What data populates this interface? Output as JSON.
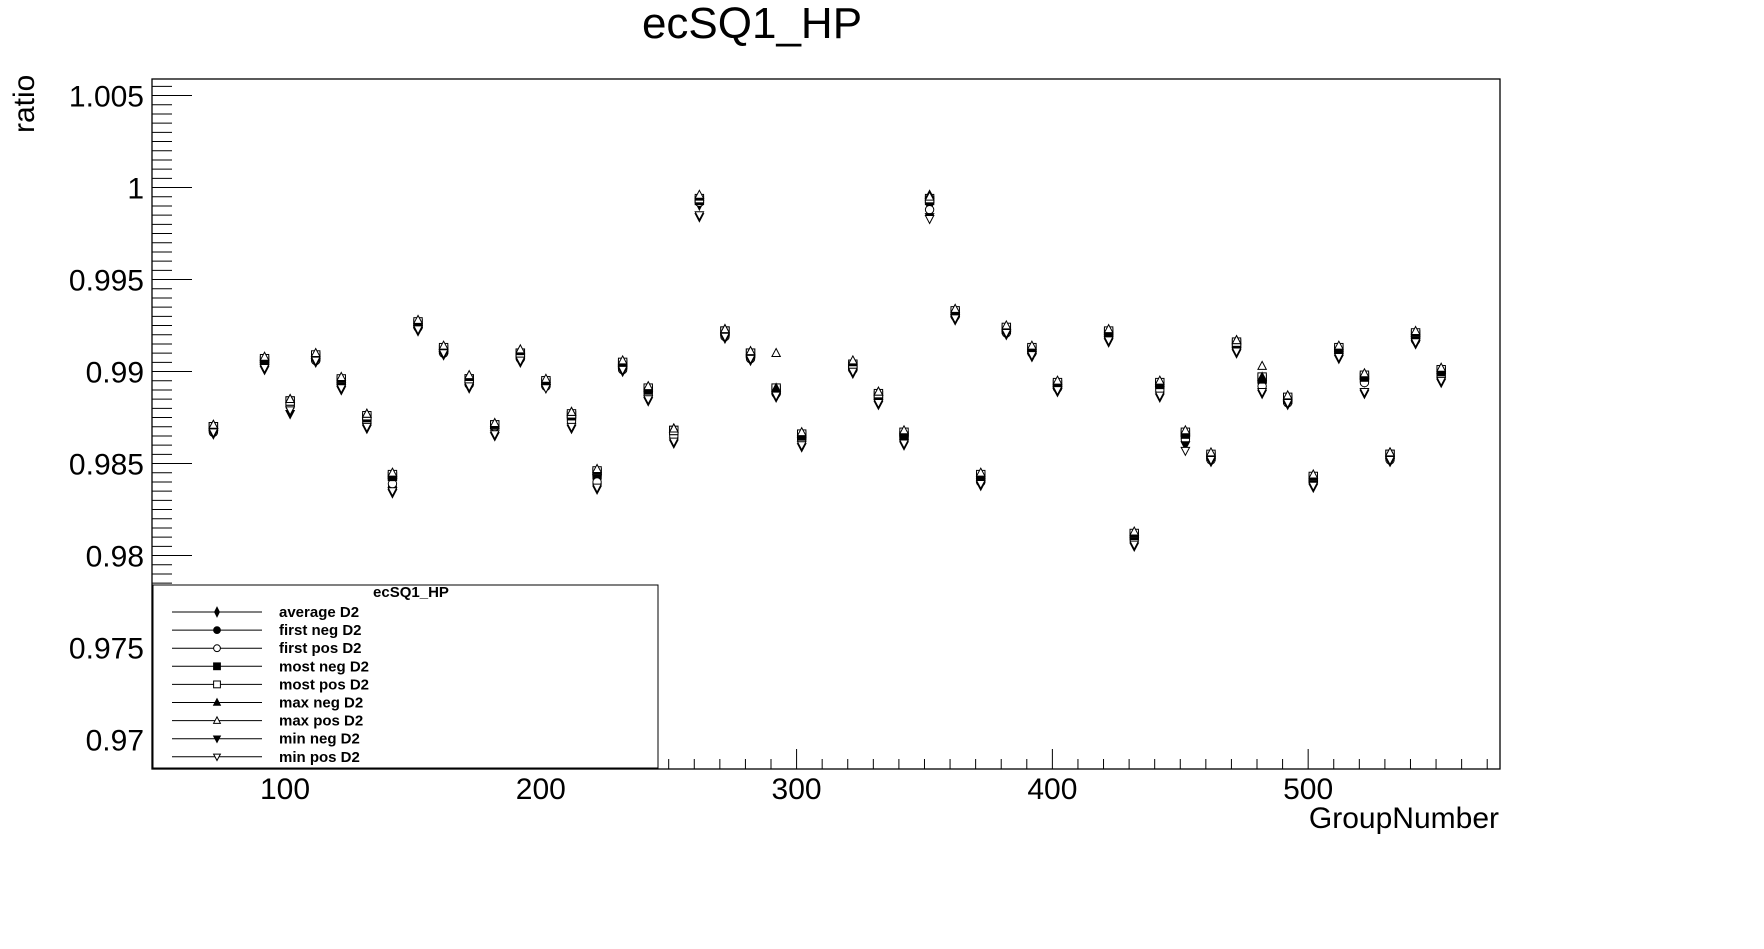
{
  "chart_data": {
    "type": "scatter",
    "title": "ecSQ1_HP",
    "xlabel": "GroupNumber",
    "ylabel": "ratio",
    "xlim": [
      48,
      575
    ],
    "ylim": [
      0.9684,
      1.0059
    ],
    "xticks": [
      100,
      200,
      300,
      400,
      500
    ],
    "xtick_labels": [
      "100",
      "200",
      "300",
      "400",
      "500"
    ],
    "yticks": [
      0.97,
      0.975,
      0.98,
      0.985,
      0.99,
      0.995,
      1.0,
      1.005
    ],
    "ytick_labels": [
      "0.97",
      "0.975",
      "0.98",
      "0.985",
      "0.99",
      "0.995",
      "1",
      "1.005"
    ],
    "grid": false,
    "legend": {
      "title": "ecSQ1_HP",
      "position": "bottom-left"
    },
    "x": [
      72,
      92,
      102,
      112,
      122,
      132,
      142,
      152,
      162,
      172,
      182,
      192,
      202,
      212,
      222,
      232,
      242,
      252,
      262,
      272,
      282,
      292,
      302,
      322,
      332,
      342,
      352,
      362,
      372,
      382,
      392,
      402,
      422,
      432,
      442,
      452,
      462,
      472,
      482,
      492,
      502,
      512,
      522,
      532,
      542,
      552
    ],
    "series": [
      {
        "name": "average D2",
        "marker": "diamond",
        "values": [
          0.9868,
          0.9905,
          0.9882,
          0.9907,
          0.9894,
          0.9873,
          0.9838,
          0.9925,
          0.9911,
          0.9894,
          0.987,
          0.9908,
          0.9893,
          0.9874,
          0.9841,
          0.9902,
          0.9888,
          0.9866,
          0.9991,
          0.992,
          0.9908,
          0.9889,
          0.9864,
          0.9902,
          0.9886,
          0.9865,
          0.999,
          0.9931,
          0.9841,
          0.9922,
          0.9911,
          0.9892,
          0.992,
          0.9808,
          0.9891,
          0.9864,
          0.9853,
          0.9914,
          0.9893,
          0.9884,
          0.9841,
          0.9911,
          0.9895,
          0.9853,
          0.9918,
          0.9898
        ]
      },
      {
        "name": "first neg D2",
        "marker": "circle-filled",
        "values": [
          0.9869,
          0.9906,
          0.9883,
          0.9908,
          0.9895,
          0.9874,
          0.9837,
          0.9926,
          0.9912,
          0.9895,
          0.987,
          0.9909,
          0.9894,
          0.9875,
          0.9842,
          0.9903,
          0.9889,
          0.9867,
          0.9993,
          0.9921,
          0.9909,
          0.989,
          0.9865,
          0.9903,
          0.9887,
          0.9866,
          0.9992,
          0.9932,
          0.9842,
          0.9923,
          0.9912,
          0.9893,
          0.9921,
          0.981,
          0.9892,
          0.9865,
          0.9854,
          0.9915,
          0.9894,
          0.9885,
          0.9842,
          0.9912,
          0.9896,
          0.9854,
          0.9919,
          0.9899
        ]
      },
      {
        "name": "first pos D2",
        "marker": "circle-open",
        "values": [
          0.9867,
          0.9904,
          0.9881,
          0.9906,
          0.9893,
          0.9872,
          0.9839,
          0.9924,
          0.991,
          0.9893,
          0.987,
          0.9907,
          0.9892,
          0.9873,
          0.984,
          0.9901,
          0.9887,
          0.9865,
          0.9992,
          0.9919,
          0.9907,
          0.9888,
          0.9863,
          0.9901,
          0.9885,
          0.9864,
          0.9988,
          0.993,
          0.984,
          0.9921,
          0.991,
          0.9891,
          0.9919,
          0.9809,
          0.989,
          0.9863,
          0.9852,
          0.9913,
          0.9892,
          0.9883,
          0.984,
          0.991,
          0.9894,
          0.9852,
          0.9917,
          0.9897
        ]
      },
      {
        "name": "most neg D2",
        "marker": "square-filled",
        "values": [
          0.987,
          0.9906,
          0.9884,
          0.9908,
          0.9895,
          0.9875,
          0.9843,
          0.9926,
          0.9912,
          0.9896,
          0.9871,
          0.991,
          0.9894,
          0.9876,
          0.9845,
          0.9904,
          0.989,
          0.9868,
          0.9993,
          0.9922,
          0.991,
          0.989,
          0.9865,
          0.9903,
          0.9887,
          0.9865,
          0.9993,
          0.9932,
          0.9843,
          0.9923,
          0.9912,
          0.9893,
          0.9921,
          0.9811,
          0.9893,
          0.9866,
          0.9854,
          0.9915,
          0.9896,
          0.9885,
          0.9842,
          0.9912,
          0.9897,
          0.9855,
          0.992,
          0.99
        ]
      },
      {
        "name": "most pos D2",
        "marker": "square-open",
        "values": [
          0.987,
          0.9907,
          0.9884,
          0.9909,
          0.9896,
          0.9876,
          0.9844,
          0.9927,
          0.9913,
          0.9896,
          0.9871,
          0.991,
          0.9895,
          0.9877,
          0.9846,
          0.9905,
          0.9891,
          0.9868,
          0.9994,
          0.9922,
          0.991,
          0.9891,
          0.9866,
          0.9904,
          0.9888,
          0.9867,
          0.9994,
          0.9933,
          0.9844,
          0.9924,
          0.9913,
          0.9894,
          0.9922,
          0.9812,
          0.9894,
          0.9867,
          0.9855,
          0.9916,
          0.9897,
          0.9886,
          0.9843,
          0.9913,
          0.9898,
          0.9855,
          0.9921,
          0.9901
        ]
      },
      {
        "name": "max neg D2",
        "marker": "triangle-up-filled",
        "values": [
          0.9871,
          0.9907,
          0.9885,
          0.9909,
          0.9896,
          0.9877,
          0.9844,
          0.9927,
          0.9913,
          0.9897,
          0.9871,
          0.9911,
          0.9895,
          0.9878,
          0.9846,
          0.9905,
          0.9891,
          0.9869,
          0.9995,
          0.9923,
          0.9911,
          0.9891,
          0.9866,
          0.9905,
          0.9889,
          0.9867,
          0.9996,
          0.9933,
          0.9844,
          0.9924,
          0.9913,
          0.9894,
          0.9922,
          0.9812,
          0.9894,
          0.9867,
          0.9855,
          0.9917,
          0.9897,
          0.9886,
          0.9843,
          0.9913,
          0.9898,
          0.9856,
          0.9921,
          0.9901
        ]
      },
      {
        "name": "max pos D2",
        "marker": "triangle-up-open",
        "values": [
          0.9871,
          0.9908,
          0.9885,
          0.991,
          0.9897,
          0.9877,
          0.9845,
          0.9928,
          0.9914,
          0.9898,
          0.9872,
          0.9912,
          0.9896,
          0.9878,
          0.9847,
          0.9906,
          0.9892,
          0.9869,
          0.9996,
          0.9923,
          0.9911,
          0.991,
          0.9867,
          0.9906,
          0.9889,
          0.9868,
          0.9995,
          0.9934,
          0.9845,
          0.9925,
          0.9914,
          0.9895,
          0.9923,
          0.9813,
          0.9895,
          0.9868,
          0.9856,
          0.9917,
          0.9903,
          0.9887,
          0.9844,
          0.9914,
          0.9899,
          0.9856,
          0.9922,
          0.9902
        ]
      },
      {
        "name": "min neg D2",
        "marker": "triangle-down-filled",
        "values": [
          0.9866,
          0.9901,
          0.9877,
          0.9905,
          0.989,
          0.9869,
          0.9834,
          0.9922,
          0.9909,
          0.9891,
          0.9865,
          0.9905,
          0.9891,
          0.9869,
          0.9836,
          0.99,
          0.9884,
          0.9861,
          0.9984,
          0.9918,
          0.9906,
          0.9886,
          0.9859,
          0.9899,
          0.9882,
          0.986,
          0.9984,
          0.9928,
          0.9838,
          0.992,
          0.9908,
          0.9889,
          0.9916,
          0.9805,
          0.9886,
          0.986,
          0.9851,
          0.991,
          0.9888,
          0.9882,
          0.9837,
          0.9907,
          0.9888,
          0.9851,
          0.9915,
          0.9894
        ]
      },
      {
        "name": "min pos D2",
        "marker": "triangle-down-open",
        "values": [
          0.9867,
          0.9902,
          0.9879,
          0.9906,
          0.9891,
          0.987,
          0.9835,
          0.9923,
          0.991,
          0.9892,
          0.9866,
          0.9906,
          0.9891,
          0.987,
          0.9837,
          0.9901,
          0.9885,
          0.9862,
          0.9985,
          0.9919,
          0.9907,
          0.9887,
          0.986,
          0.99,
          0.9883,
          0.9861,
          0.9983,
          0.9929,
          0.9839,
          0.9921,
          0.9909,
          0.989,
          0.9917,
          0.9806,
          0.9887,
          0.9857,
          0.9852,
          0.9911,
          0.9889,
          0.9883,
          0.9838,
          0.9908,
          0.9889,
          0.9852,
          0.9916,
          0.9895
        ]
      }
    ]
  }
}
